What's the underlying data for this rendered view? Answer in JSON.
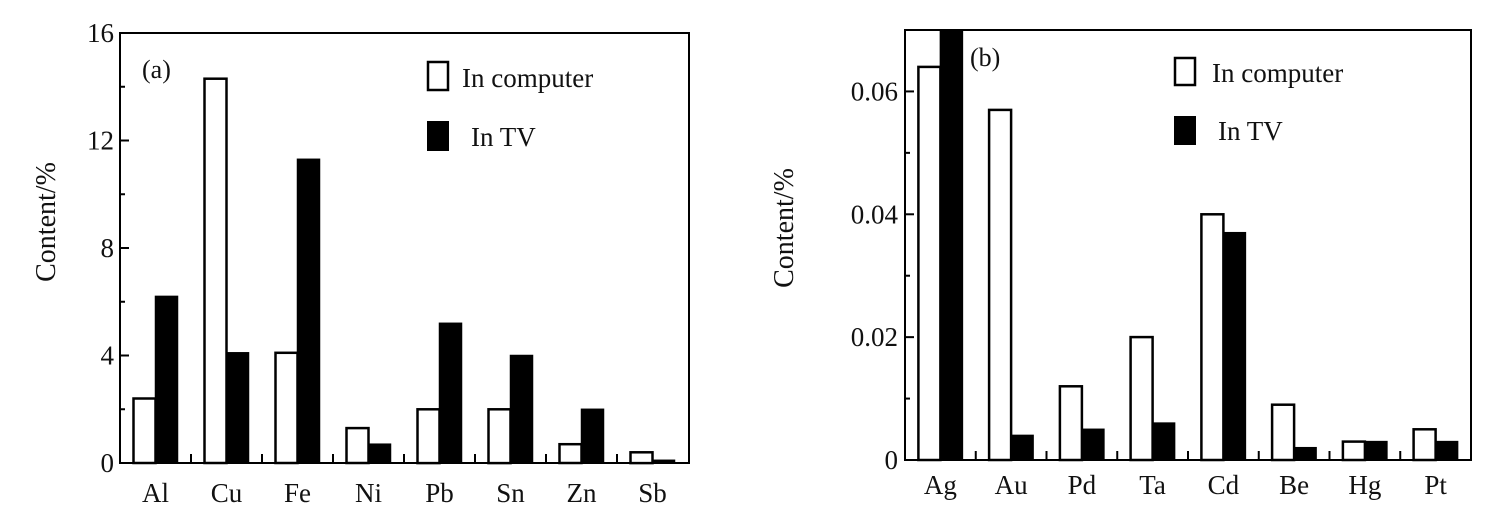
{
  "chart_data": [
    {
      "type": "bar",
      "panel_label": "(a)",
      "categories": [
        "Al",
        "Cu",
        "Fe",
        "Ni",
        "Pb",
        "Sn",
        "Zn",
        "Sb"
      ],
      "series": [
        {
          "name": "In computer",
          "values": [
            2.4,
            14.3,
            4.1,
            1.3,
            2.0,
            2.0,
            0.7,
            0.4
          ]
        },
        {
          "name": "In TV",
          "values": [
            6.2,
            4.1,
            11.3,
            0.7,
            5.2,
            4.0,
            2.0,
            0.1
          ]
        }
      ],
      "xlabel": "",
      "ylabel": "Content/%",
      "ylim": [
        0,
        16
      ],
      "yticks": [
        "0",
        "4",
        "8",
        "12",
        "16"
      ],
      "legend_position": "top-right",
      "grid": false
    },
    {
      "type": "bar",
      "panel_label": "(b)",
      "categories": [
        "Ag",
        "Au",
        "Pd",
        "Ta",
        "Cd",
        "Be",
        "Hg",
        "Pt"
      ],
      "series": [
        {
          "name": "In computer",
          "values": [
            0.064,
            0.057,
            0.012,
            0.02,
            0.04,
            0.009,
            0.003,
            0.005
          ]
        },
        {
          "name": "In TV",
          "values": [
            0.07,
            0.004,
            0.005,
            0.006,
            0.037,
            0.002,
            0.003,
            0.003
          ]
        }
      ],
      "xlabel": "",
      "ylabel": "Content/%",
      "ylim": [
        0,
        0.07
      ],
      "yticks": [
        "0",
        "0.02",
        "0.04",
        "0.06"
      ],
      "legend_position": "top-right",
      "grid": false
    }
  ],
  "colors": {
    "in_computer": "#ffffff",
    "in_tv": "#000000",
    "axis": "#000000"
  }
}
